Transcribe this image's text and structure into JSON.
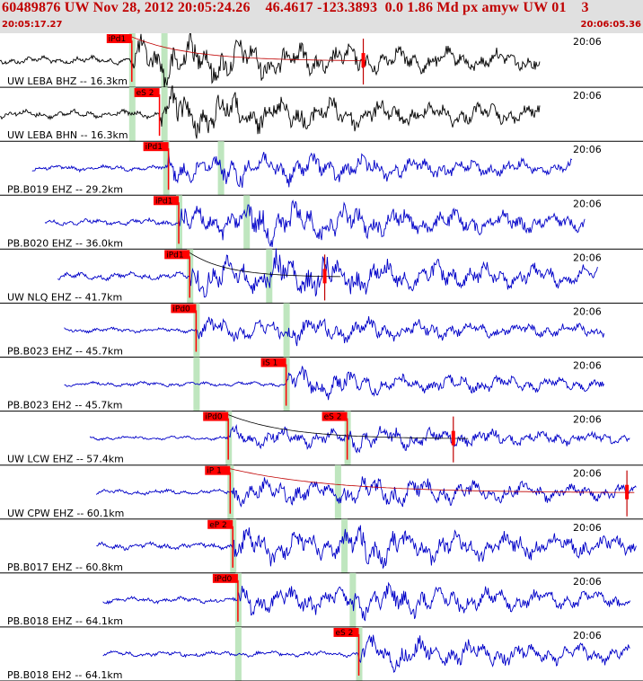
{
  "header": {
    "title": "60489876 UW Nov 28, 2012 20:05:24.26    46.4617 -123.3893  0.0 1.86 Md px amyw UW 01    3",
    "time_start": "20:05:17.27",
    "time_end": "20:06:05.36"
  },
  "colors": {
    "header_text": "#c00000",
    "pick_bg": "#ff0000",
    "window": "#bfe6bf",
    "trace_black": "#000000",
    "trace_blue": "#0000c8",
    "coda": "#c00000"
  },
  "chart_data": {
    "type": "seismogram",
    "time_axis": {
      "start": "20:05:17.27",
      "end": "20:06:05.36",
      "tick_label": "20:06"
    },
    "traces": [
      {
        "label": "UW LEBA BHZ -- 16.3km",
        "color": "black",
        "amp": 0.7,
        "start": 0.0,
        "end": 0.84,
        "picks": [
          {
            "label": "iPd1",
            "pos": 0.205
          }
        ],
        "windows": [
          0.205,
          0.255
        ],
        "coda": true,
        "coda_end": 0.57,
        "marker": 0.565
      },
      {
        "label": "UW LEBA BHN -- 16.3km",
        "color": "black",
        "amp": 0.7,
        "start": 0.0,
        "end": 0.84,
        "picks": [
          {
            "label": "eS 2",
            "pos": 0.248
          }
        ],
        "windows": [
          0.205,
          0.255
        ],
        "coda": false
      },
      {
        "label": "PB.B019 EHZ -- 29.2km",
        "color": "blue",
        "amp": 0.5,
        "start": 0.05,
        "end": 0.89,
        "picks": [
          {
            "label": "iPd1",
            "pos": 0.262
          }
        ],
        "windows": [
          0.258,
          0.343
        ],
        "coda": false
      },
      {
        "label": "PB.B020 EHZ -- 36.0km",
        "color": "blue",
        "amp": 0.6,
        "start": 0.07,
        "end": 0.91,
        "picks": [
          {
            "label": "iPd1",
            "pos": 0.278
          }
        ],
        "windows": [
          0.278,
          0.383
        ],
        "coda": false
      },
      {
        "label": "UW NLQ EHZ -- 41.7km",
        "color": "blue",
        "amp": 0.65,
        "start": 0.09,
        "end": 0.93,
        "picks": [
          {
            "label": "iPd1",
            "pos": 0.295
          }
        ],
        "windows": [
          0.295,
          0.418
        ],
        "coda": true,
        "coda_end": 0.53,
        "marker": 0.505
      },
      {
        "label": "PB.B023 EHZ -- 45.7km",
        "color": "blue",
        "amp": 0.4,
        "start": 0.1,
        "end": 0.94,
        "picks": [
          {
            "label": "iPd0",
            "pos": 0.305
          }
        ],
        "windows": [
          0.305,
          0.445
        ],
        "coda": false
      },
      {
        "label": "PB.B023 EH2 -- 45.7km",
        "color": "blue",
        "amp": 0.4,
        "start": 0.1,
        "end": 0.94,
        "picks": [
          {
            "label": "iS 1",
            "pos": 0.445
          }
        ],
        "windows": [
          0.305,
          0.445
        ],
        "coda": false
      },
      {
        "label": "UW LCW EHZ -- 57.4km",
        "color": "blue",
        "amp": 0.35,
        "start": 0.14,
        "end": 0.98,
        "picks": [
          {
            "label": "iPd0",
            "pos": 0.355
          },
          {
            "label": "eS 2",
            "pos": 0.54
          }
        ],
        "windows": [
          0.355,
          0.54
        ],
        "coda": true,
        "coda_end": 0.73,
        "marker": 0.705
      },
      {
        "label": "UW CPW EHZ -- 60.1km",
        "color": "blue",
        "amp": 0.45,
        "start": 0.15,
        "end": 0.99,
        "picks": [
          {
            "label": "iP 1",
            "pos": 0.358
          }
        ],
        "windows": [
          0.358,
          0.525
        ],
        "coda": true,
        "coda_end": 0.99,
        "marker": 0.975
      },
      {
        "label": "PB.B017 EHZ -- 60.8km",
        "color": "blue",
        "amp": 0.6,
        "start": 0.15,
        "end": 0.99,
        "picks": [
          {
            "label": "eP 2",
            "pos": 0.362
          }
        ],
        "windows": [
          0.362,
          0.535
        ],
        "coda": false
      },
      {
        "label": "PB.B018 EHZ -- 64.1km",
        "color": "blue",
        "amp": 0.5,
        "start": 0.16,
        "end": 0.98,
        "picks": [
          {
            "label": "iPd0",
            "pos": 0.37
          }
        ],
        "windows": [
          0.37,
          0.548
        ],
        "coda": false
      },
      {
        "label": "PB.B018 EH2 -- 64.1km",
        "color": "blue",
        "amp": 0.5,
        "start": 0.16,
        "end": 0.98,
        "picks": [
          {
            "label": "eS 2",
            "pos": 0.558
          }
        ],
        "windows": [
          0.37,
          0.558
        ],
        "coda": false
      }
    ]
  }
}
